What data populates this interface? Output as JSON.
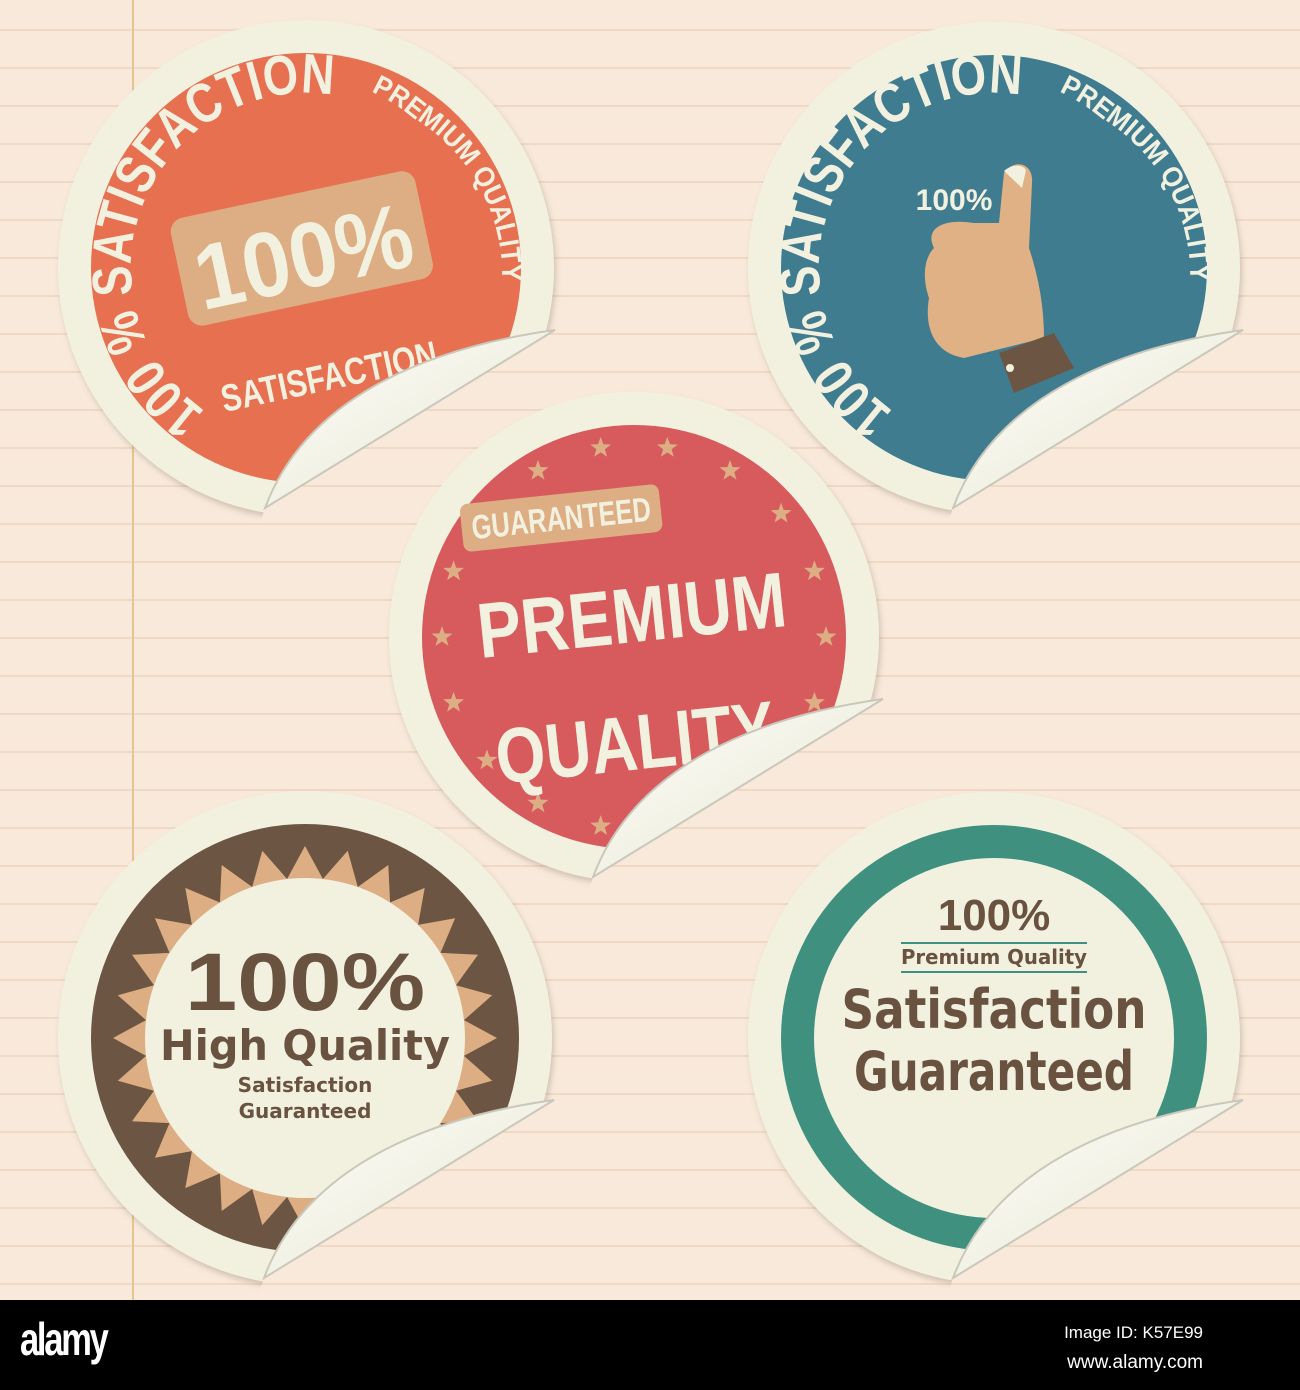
{
  "colors": {
    "paper": "#f8e9da",
    "rule": "#efd8c4",
    "margin": "#e4c48f",
    "cream": "#f2f1e0",
    "tan": "#ddae84",
    "orange": "#e6704f",
    "blue": "#3f7c90",
    "red": "#d75a5d",
    "brown": "#6c5542",
    "teal": "#3f9080",
    "text_brown": "#6a5240"
  },
  "stickers": [
    {
      "ring_main": "100 % SATISFACTION",
      "ring_small": "PREMIUM QUALITY",
      "center_big": "100%",
      "center_small": "SATISFACTION"
    },
    {
      "ring_main": "100 % SATISFACTION",
      "ring_small": "PREMIUM QUALITY",
      "center_small": "100%",
      "icon": "thumbs-up-icon"
    },
    {
      "badge": "GUARANTEED",
      "line1": "PREMIUM",
      "line2": "QUALITY",
      "icon": "star-icon"
    },
    {
      "line1": "100%",
      "line2": "High Quality",
      "line3": "Satisfaction",
      "line4": "Guaranteed"
    },
    {
      "line1": "100%",
      "line2": "Premium Quality",
      "line3": "Satisfaction",
      "line4": "Guaranteed"
    }
  ],
  "footer": {
    "logo": "alamy",
    "image_id": "Image ID: K57E99",
    "url": "www.alamy.com"
  }
}
